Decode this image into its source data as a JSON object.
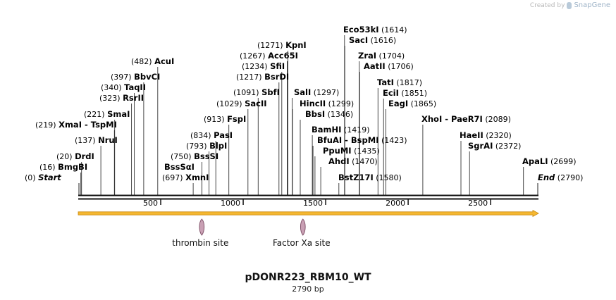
{
  "credit": {
    "prefix": "Created by",
    "brand": "SnapGene"
  },
  "map": {
    "name": "pDONR223_RBM10_WT",
    "length_label": "2790 bp",
    "length": 2790,
    "start_label": "Start",
    "start_pos": "(0)",
    "end_label": "End",
    "end_pos": "(2790)",
    "ticks": [
      "500",
      "1000",
      "1500",
      "2000",
      "2500"
    ]
  },
  "sites": [
    {
      "name": "BmgBI",
      "pos": 16,
      "pos_label": "(16)"
    },
    {
      "name": "DrdI",
      "pos": 20,
      "pos_label": "(20)"
    },
    {
      "name": "NruI",
      "pos": 137,
      "pos_label": "(137)"
    },
    {
      "name": "XmaI",
      "pos": 219,
      "pos_label": "(219)",
      "suffix": "- TspMI"
    },
    {
      "name": "SmaI",
      "pos": 221,
      "pos_label": "(221)"
    },
    {
      "name": "RsrII",
      "pos": 323,
      "pos_label": "(323)"
    },
    {
      "name": "TaqII",
      "pos": 340,
      "pos_label": "(340)"
    },
    {
      "name": "BbvCI",
      "pos": 397,
      "pos_label": "(397)"
    },
    {
      "name": "AcuI",
      "pos": 482,
      "pos_label": "(482)"
    },
    {
      "name": "XmnI",
      "pos": 697,
      "pos_label": "(697)"
    },
    {
      "name": "BssSαI",
      "pos": 750,
      "pos_label": "(750)"
    },
    {
      "name": "BssSI",
      "pos": 750,
      "pos_label": "(750)"
    },
    {
      "name": "BlpI",
      "pos": 793,
      "pos_label": "(793)"
    },
    {
      "name": "PasI",
      "pos": 834,
      "pos_label": "(834)"
    },
    {
      "name": "FspI",
      "pos": 913,
      "pos_label": "(913)"
    },
    {
      "name": "SacII",
      "pos": 1029,
      "pos_label": "(1029)"
    },
    {
      "name": "SbfI",
      "pos": 1091,
      "pos_label": "(1091)"
    },
    {
      "name": "BsrDI",
      "pos": 1217,
      "pos_label": "(1217)"
    },
    {
      "name": "SfiI",
      "pos": 1234,
      "pos_label": "(1234)"
    },
    {
      "name": "Acc65I",
      "pos": 1267,
      "pos_label": "(1267)"
    },
    {
      "name": "KpnI",
      "pos": 1271,
      "pos_label": "(1271)"
    },
    {
      "name": "SalI",
      "pos": 1297,
      "pos_label": "(1297)"
    },
    {
      "name": "HincII",
      "pos": 1299,
      "pos_label": "(1299)"
    },
    {
      "name": "BbsI",
      "pos": 1346,
      "pos_label": "(1346)"
    },
    {
      "name": "BamHI",
      "pos": 1419,
      "pos_label": "(1419)"
    },
    {
      "name": "BfuAI",
      "pos": 1423,
      "pos_label": "(1423)",
      "suffix": "- BspMI"
    },
    {
      "name": "PpuMI",
      "pos": 1435,
      "pos_label": "(1435)"
    },
    {
      "name": "AhdI",
      "pos": 1470,
      "pos_label": "(1470)"
    },
    {
      "name": "BstZ17I",
      "pos": 1580,
      "pos_label": "(1580)"
    },
    {
      "name": "Eco53kI",
      "pos": 1614,
      "pos_label": "(1614)"
    },
    {
      "name": "SacI",
      "pos": 1616,
      "pos_label": "(1616)"
    },
    {
      "name": "ZraI",
      "pos": 1704,
      "pos_label": "(1704)"
    },
    {
      "name": "AatII",
      "pos": 1706,
      "pos_label": "(1706)"
    },
    {
      "name": "TatI",
      "pos": 1817,
      "pos_label": "(1817)"
    },
    {
      "name": "EciI",
      "pos": 1851,
      "pos_label": "(1851)"
    },
    {
      "name": "EagI",
      "pos": 1865,
      "pos_label": "(1865)"
    },
    {
      "name": "XhoI",
      "pos": 2089,
      "pos_label": "(2089)",
      "suffix": "- PaeR7I"
    },
    {
      "name": "HaeII",
      "pos": 2320,
      "pos_label": "(2320)"
    },
    {
      "name": "SgrAI",
      "pos": 2372,
      "pos_label": "(2372)"
    },
    {
      "name": "ApaLI",
      "pos": 2699,
      "pos_label": "(2699)"
    }
  ],
  "features": [
    {
      "name": "thrombin site",
      "pos": 749
    },
    {
      "name": "Factor Xa site",
      "pos": 1362
    }
  ],
  "colors": {
    "arrow_fill": "#f5b731",
    "arrow_stroke": "#c98a10",
    "feature_fill": "#c9a0b4",
    "feature_stroke": "#7a4a62"
  }
}
